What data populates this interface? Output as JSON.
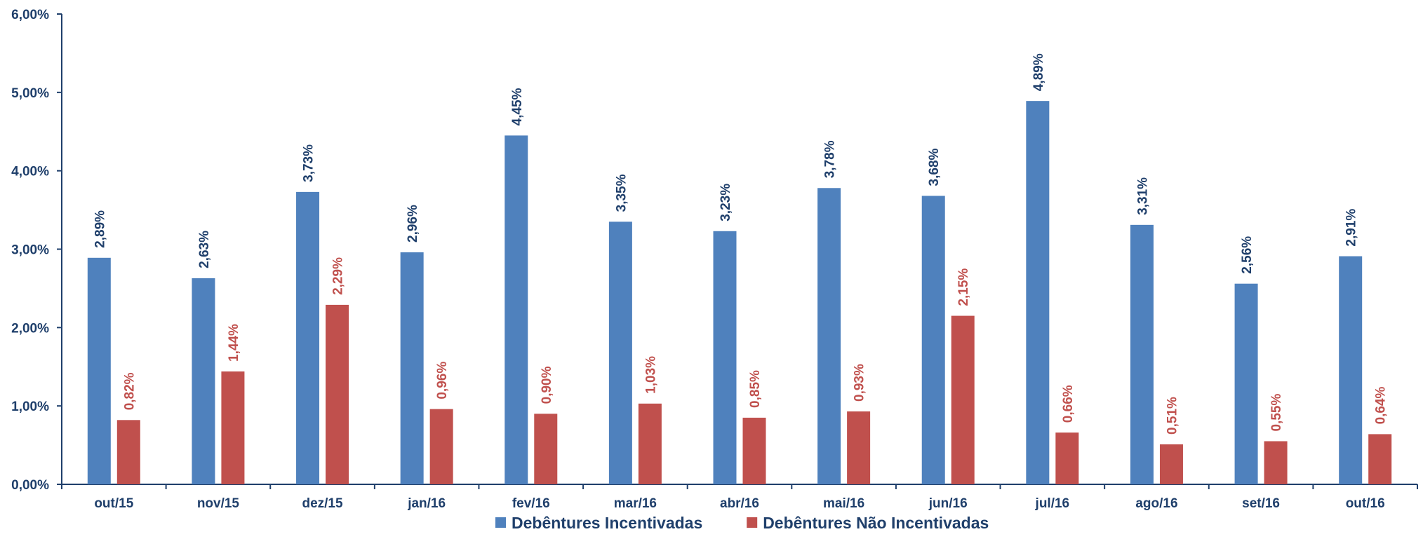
{
  "chart_data": {
    "type": "bar",
    "categories": [
      "out/15",
      "nov/15",
      "dez/15",
      "jan/16",
      "fev/16",
      "mar/16",
      "abr/16",
      "mai/16",
      "jun/16",
      "jul/16",
      "ago/16",
      "set/16",
      "out/16"
    ],
    "series": [
      {
        "name": "Debêntures Incentivadas",
        "values": [
          2.89,
          2.63,
          3.73,
          2.96,
          4.45,
          3.35,
          3.23,
          3.78,
          3.68,
          4.89,
          3.31,
          2.56,
          2.91
        ],
        "labels": [
          "2,89%",
          "2,63%",
          "3,73%",
          "2,96%",
          "4,45%",
          "3,35%",
          "3,23%",
          "3,78%",
          "3,68%",
          "4,89%",
          "3,31%",
          "2,56%",
          "2,91%"
        ],
        "color": "#4f81bd",
        "label_color": "#1f3f6b"
      },
      {
        "name": "Debêntures Não Incentivadas",
        "values": [
          0.82,
          1.44,
          2.29,
          0.96,
          0.9,
          1.03,
          0.85,
          0.93,
          2.15,
          0.66,
          0.51,
          0.55,
          0.64
        ],
        "labels": [
          "0,82%",
          "1,44%",
          "2,29%",
          "0,96%",
          "0,90%",
          "1,03%",
          "0,85%",
          "0,93%",
          "2,15%",
          "0,66%",
          "0,51%",
          "0,55%",
          "0,64%"
        ],
        "color": "#c0504d",
        "label_color": "#c0504d"
      }
    ],
    "y_ticks": [
      0,
      1,
      2,
      3,
      4,
      5,
      6
    ],
    "y_tick_labels": [
      "0,00%",
      "1,00%",
      "2,00%",
      "3,00%",
      "4,00%",
      "5,00%",
      "6,00%"
    ],
    "ylim": [
      0,
      6
    ],
    "axis_color": "#1f3f6b",
    "grid": false,
    "legend_position": "bottom-center",
    "title": "",
    "xlabel": "",
    "ylabel": ""
  }
}
